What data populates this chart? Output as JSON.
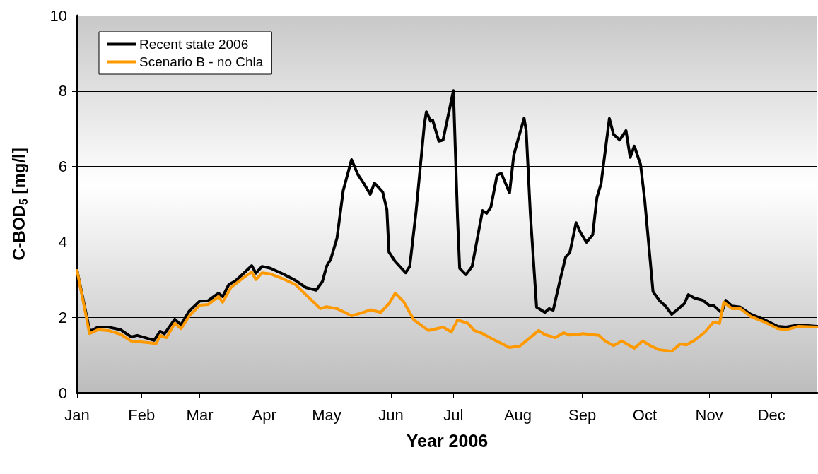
{
  "chart_data": {
    "type": "line",
    "xlabel": "Year 2006",
    "ylabel": "C-BOD$_{5}$ [mg/l]",
    "xlim": [
      "2006-01-01",
      "2006-12-23"
    ],
    "xticks": [
      {
        "value": "2006-01-01",
        "label": "Jan"
      },
      {
        "value": "2006-02-01",
        "label": "Feb"
      },
      {
        "value": "2006-03-01",
        "label": "Mar"
      },
      {
        "value": "2006-04-01",
        "label": "Apr"
      },
      {
        "value": "2006-05-01",
        "label": "May"
      },
      {
        "value": "2006-06-01",
        "label": "Jun"
      },
      {
        "value": "2006-07-01",
        "label": "Jul"
      },
      {
        "value": "2006-08-01",
        "label": "Aug"
      },
      {
        "value": "2006-09-01",
        "label": "Sep"
      },
      {
        "value": "2006-10-01",
        "label": "Oct"
      },
      {
        "value": "2006-11-01",
        "label": "Nov"
      },
      {
        "value": "2006-12-01",
        "label": "Dec"
      }
    ],
    "ylim": [
      0,
      10
    ],
    "yticks": [
      0,
      2,
      4,
      6,
      8,
      10
    ],
    "grid": "y",
    "legend": "top left",
    "marker": "none",
    "line_style": "solid",
    "series": [
      {
        "name": "Recent state 2006",
        "color": "#000000",
        "x": [
          "2006-01-01",
          "2006-01-07",
          "2006-01-08",
          "2006-01-11",
          "2006-01-16",
          "2006-01-22",
          "2006-01-27",
          "2006-01-30",
          "2006-02-04",
          "2006-02-07",
          "2006-02-10",
          "2006-02-12",
          "2006-02-17",
          "2006-02-20",
          "2006-02-24",
          "2006-03-01",
          "2006-03-05",
          "2006-03-10",
          "2006-03-12",
          "2006-03-15",
          "2006-03-18",
          "2006-03-22",
          "2006-03-26",
          "2006-03-28",
          "2006-03-31",
          "2006-04-04",
          "2006-04-10",
          "2006-04-16",
          "2006-04-21",
          "2006-04-26",
          "2006-04-29",
          "2006-05-01",
          "2006-05-03",
          "2006-05-06",
          "2006-05-09",
          "2006-05-13",
          "2006-05-16",
          "2006-05-19",
          "2006-05-22",
          "2006-05-24",
          "2006-05-28",
          "2006-05-30",
          "2006-05-31",
          "2006-06-03",
          "2006-06-08",
          "2006-06-10",
          "2006-06-13",
          "2006-06-17",
          "2006-06-18",
          "2006-06-20",
          "2006-06-21",
          "2006-06-24",
          "2006-06-26",
          "2006-07-01",
          "2006-07-03",
          "2006-07-04",
          "2006-07-07",
          "2006-07-10",
          "2006-07-15",
          "2006-07-17",
          "2006-07-19",
          "2006-07-22",
          "2006-07-24",
          "2006-07-28",
          "2006-07-30",
          "2006-08-01",
          "2006-08-04",
          "2006-08-05",
          "2006-08-07",
          "2006-08-10",
          "2006-08-14",
          "2006-08-16",
          "2006-08-18",
          "2006-08-21",
          "2006-08-24",
          "2006-08-26",
          "2006-08-29",
          "2006-08-31",
          "2006-09-03",
          "2006-09-06",
          "2006-09-08",
          "2006-09-10",
          "2006-09-14",
          "2006-09-16",
          "2006-09-19",
          "2006-09-22",
          "2006-09-24",
          "2006-09-26",
          "2006-09-29",
          "2006-10-01",
          "2006-10-05",
          "2006-10-08",
          "2006-10-11",
          "2006-10-14",
          "2006-10-20",
          "2006-10-22",
          "2006-10-25",
          "2006-10-29",
          "2006-11-01",
          "2006-11-03",
          "2006-11-07",
          "2006-11-09",
          "2006-11-12",
          "2006-11-16",
          "2006-11-21",
          "2006-11-27",
          "2006-12-04",
          "2006-12-08",
          "2006-12-14",
          "2006-12-23"
        ],
        "values": [
          3.24,
          1.67,
          1.65,
          1.74,
          1.74,
          1.67,
          1.48,
          1.52,
          1.44,
          1.39,
          1.63,
          1.56,
          1.95,
          1.8,
          2.17,
          2.43,
          2.44,
          2.64,
          2.55,
          2.87,
          2.96,
          3.16,
          3.37,
          3.17,
          3.35,
          3.3,
          3.15,
          2.98,
          2.79,
          2.72,
          2.95,
          3.35,
          3.54,
          4.1,
          5.36,
          6.18,
          5.79,
          5.54,
          5.26,
          5.56,
          5.32,
          4.85,
          3.73,
          3.48,
          3.18,
          3.35,
          4.79,
          7.1,
          7.45,
          7.2,
          7.23,
          6.67,
          6.7,
          8.01,
          4.61,
          3.3,
          3.13,
          3.35,
          4.83,
          4.76,
          4.92,
          5.77,
          5.82,
          5.3,
          6.29,
          6.7,
          7.28,
          6.95,
          4.74,
          2.27,
          2.13,
          2.23,
          2.19,
          2.92,
          3.6,
          3.72,
          4.51,
          4.26,
          3.99,
          4.19,
          5.17,
          5.54,
          7.27,
          6.85,
          6.7,
          6.95,
          6.24,
          6.54,
          6.05,
          5.11,
          2.68,
          2.45,
          2.3,
          2.08,
          2.36,
          2.6,
          2.51,
          2.45,
          2.32,
          2.32,
          2.12,
          2.45,
          2.3,
          2.27,
          2.08,
          1.95,
          1.76,
          1.74,
          1.8,
          1.76
        ]
      },
      {
        "name": "Scenario B - no Chla",
        "color": "#ff9900",
        "x": [
          "2006-01-01",
          "2006-01-07",
          "2006-01-11",
          "2006-01-16",
          "2006-01-22",
          "2006-01-27",
          "2006-02-04",
          "2006-02-08",
          "2006-02-10",
          "2006-02-13",
          "2006-02-17",
          "2006-02-20",
          "2006-02-24",
          "2006-03-01",
          "2006-03-05",
          "2006-03-10",
          "2006-03-12",
          "2006-03-16",
          "2006-03-22",
          "2006-03-26",
          "2006-03-28",
          "2006-03-31",
          "2006-04-04",
          "2006-04-10",
          "2006-04-16",
          "2006-04-21",
          "2006-04-28",
          "2006-05-01",
          "2006-05-06",
          "2006-05-13",
          "2006-05-18",
          "2006-05-22",
          "2006-05-27",
          "2006-05-31",
          "2006-06-03",
          "2006-06-07",
          "2006-06-12",
          "2006-06-19",
          "2006-06-23",
          "2006-06-26",
          "2006-06-30",
          "2006-07-03",
          "2006-07-08",
          "2006-07-11",
          "2006-07-15",
          "2006-07-20",
          "2006-07-28",
          "2006-08-02",
          "2006-08-06",
          "2006-08-11",
          "2006-08-14",
          "2006-08-19",
          "2006-08-23",
          "2006-08-26",
          "2006-08-31",
          "2006-09-01",
          "2006-09-09",
          "2006-09-12",
          "2006-09-16",
          "2006-09-20",
          "2006-09-26",
          "2006-09-30",
          "2006-10-04",
          "2006-10-08",
          "2006-10-14",
          "2006-10-18",
          "2006-10-21",
          "2006-10-25",
          "2006-10-30",
          "2006-11-03",
          "2006-11-06",
          "2006-11-08",
          "2006-11-12",
          "2006-11-16",
          "2006-11-21",
          "2006-11-27",
          "2006-12-04",
          "2006-12-08",
          "2006-12-14",
          "2006-12-23"
        ],
        "values": [
          3.24,
          1.57,
          1.67,
          1.65,
          1.55,
          1.37,
          1.33,
          1.3,
          1.52,
          1.46,
          1.84,
          1.7,
          2.04,
          2.32,
          2.34,
          2.55,
          2.4,
          2.79,
          3.05,
          3.2,
          3.0,
          3.18,
          3.15,
          3.02,
          2.87,
          2.6,
          2.23,
          2.28,
          2.23,
          2.04,
          2.12,
          2.2,
          2.13,
          2.36,
          2.64,
          2.42,
          1.93,
          1.65,
          1.7,
          1.74,
          1.61,
          1.93,
          1.84,
          1.65,
          1.57,
          1.42,
          1.2,
          1.24,
          1.42,
          1.65,
          1.54,
          1.46,
          1.59,
          1.53,
          1.55,
          1.57,
          1.52,
          1.37,
          1.25,
          1.37,
          1.18,
          1.37,
          1.24,
          1.14,
          1.1,
          1.29,
          1.27,
          1.39,
          1.61,
          1.87,
          1.84,
          2.4,
          2.23,
          2.23,
          2.02,
          1.89,
          1.7,
          1.67,
          1.76,
          1.74
        ]
      }
    ]
  }
}
